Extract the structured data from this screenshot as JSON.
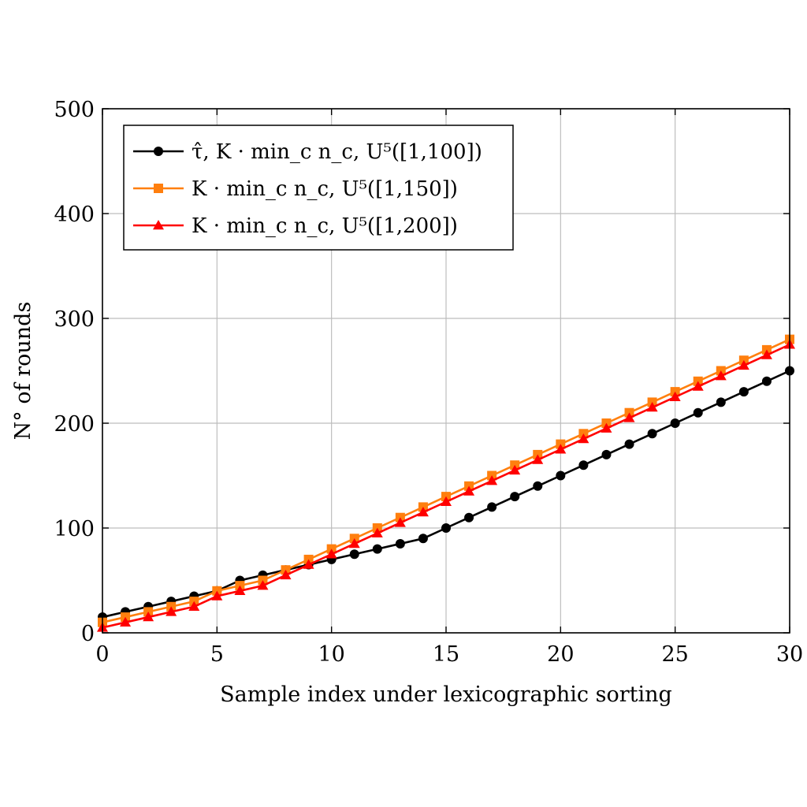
{
  "chart_data": {
    "type": "line",
    "xlabel": "Sample index under lexicographic sorting",
    "ylabel": "N° of rounds",
    "xlim": [
      0,
      30
    ],
    "ylim": [
      0,
      500
    ],
    "xticks": [
      0,
      5,
      10,
      15,
      20,
      25,
      30
    ],
    "yticks": [
      0,
      100,
      200,
      300,
      400,
      500
    ],
    "grid": true,
    "legend_position": "top-left",
    "x": [
      0,
      1,
      2,
      3,
      4,
      5,
      6,
      7,
      8,
      9,
      10,
      11,
      12,
      13,
      14,
      15,
      16,
      17,
      18,
      19,
      20,
      21,
      22,
      23,
      24,
      25,
      26,
      27,
      28,
      29,
      30
    ],
    "series": [
      {
        "name": "τ̂, K · min_c n_c, U⁵([1,100])",
        "color": "#000000",
        "marker": "circle",
        "values": [
          15,
          20,
          25,
          30,
          35,
          40,
          50,
          55,
          60,
          65,
          70,
          75,
          80,
          85,
          90,
          100,
          110,
          120,
          130,
          140,
          150,
          160,
          170,
          180,
          190,
          200,
          210,
          220,
          230,
          240,
          250
        ]
      },
      {
        "name": "K · min_c n_c, U⁵([1,150])",
        "color": "#ff7f0e",
        "marker": "square",
        "values": [
          10,
          15,
          20,
          25,
          30,
          40,
          45,
          50,
          60,
          70,
          80,
          90,
          100,
          110,
          120,
          130,
          140,
          150,
          160,
          170,
          180,
          190,
          200,
          210,
          220,
          230,
          240,
          250,
          260,
          270,
          280
        ]
      },
      {
        "name": "K · min_c n_c, U⁵([1,200])",
        "color": "#ff0000",
        "marker": "triangle",
        "values": [
          5,
          10,
          15,
          20,
          25,
          35,
          40,
          45,
          55,
          65,
          75,
          85,
          95,
          105,
          115,
          125,
          135,
          145,
          155,
          165,
          175,
          185,
          195,
          205,
          215,
          225,
          235,
          245,
          255,
          265,
          275
        ]
      }
    ]
  }
}
